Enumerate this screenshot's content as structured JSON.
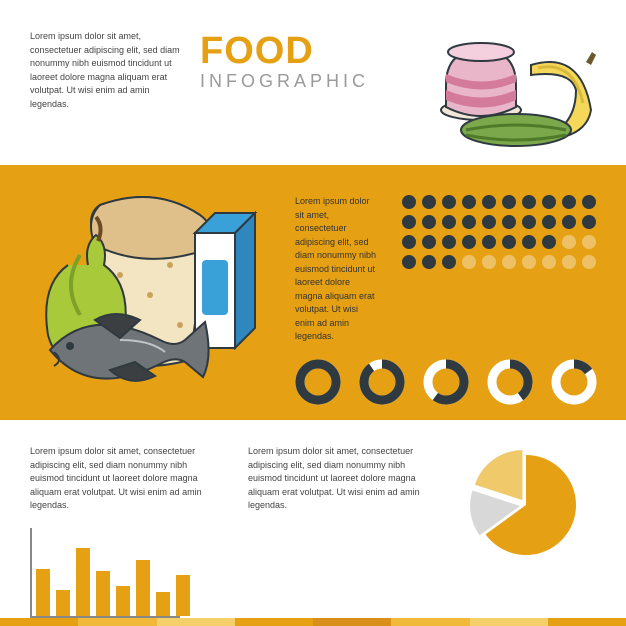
{
  "title": {
    "main": "FOOD",
    "sub": "INFOGRAPHIC",
    "main_color": "#e6a014",
    "sub_color": "#9a9a9a"
  },
  "lorem": "Lorem ipsum dolor sit amet, consectetuer adipiscing elit, sed diam nonummy nibh euismod tincidunt ut laoreet dolore magna aliquam erat volutpat. Ut wisi enim ad amin legendas.",
  "colors": {
    "accent": "#e6a014",
    "dark": "#2f3a40",
    "white": "#ffffff",
    "middle_band": "#e6a014"
  },
  "section1_foods": {
    "cake": {
      "body": "#e8b6c8",
      "stripe": "#d47a9a",
      "plate": "#f2e6d8"
    },
    "banana": {
      "body": "#f5d759",
      "shade": "#d9b93a",
      "tip": "#6b5a2a"
    },
    "cucumber": {
      "body": "#7aa84a",
      "dark": "#4e7a2a"
    }
  },
  "section2_foods": {
    "bread": {
      "crust": "#e0c08a",
      "crumb": "#f3e4c2"
    },
    "milk": {
      "blue": "#3aa0d8",
      "white": "#ffffff",
      "outline": "#2f3a40"
    },
    "pear": {
      "green": "#a8c93a",
      "dark": "#7fa028",
      "stalk": "#6b4a24"
    },
    "fish": {
      "grey": "#6f7478",
      "dark": "#3b3f42",
      "light": "#c0c4c7"
    }
  },
  "dot_grid": {
    "rows": 4,
    "cols": 10,
    "empty_color": "#ffffff",
    "empty_opacity": 0.35,
    "rows_data": [
      {
        "filled": 10,
        "fill_color": "#2f3a40"
      },
      {
        "filled": 10,
        "fill_color": "#2f3a40"
      },
      {
        "filled": 8,
        "fill_color": "#2f3a40"
      },
      {
        "filled": 3,
        "fill_color": "#2f3a40"
      }
    ]
  },
  "donuts": [
    {
      "pct": 100,
      "ring_color": "#2f3a40",
      "track_color": "#ffffff"
    },
    {
      "pct": 90,
      "ring_color": "#2f3a40",
      "track_color": "#ffffff"
    },
    {
      "pct": 60,
      "ring_color": "#2f3a40",
      "track_color": "#ffffff"
    },
    {
      "pct": 40,
      "ring_color": "#2f3a40",
      "track_color": "#ffffff"
    },
    {
      "pct": 15,
      "ring_color": "#2f3a40",
      "track_color": "#ffffff"
    }
  ],
  "bar_chart": {
    "type": "bar",
    "values": [
      55,
      30,
      80,
      52,
      35,
      65,
      28,
      48
    ],
    "bar_color": "#e6a014",
    "axis_color": "#888888",
    "max": 100
  },
  "pie_chart": {
    "type": "pie",
    "slices": [
      {
        "pct": 65,
        "color": "#e6a014",
        "explode": 0
      },
      {
        "pct": 15,
        "color": "#d8d8d8",
        "explode": 6
      },
      {
        "pct": 20,
        "color": "#f0c96a",
        "explode": 6
      }
    ]
  },
  "footer_colors": [
    "#e6a014",
    "#f0b93a",
    "#f5d06a",
    "#e6a014",
    "#d8901a",
    "#f0b93a",
    "#f5d06a",
    "#e6a014"
  ]
}
